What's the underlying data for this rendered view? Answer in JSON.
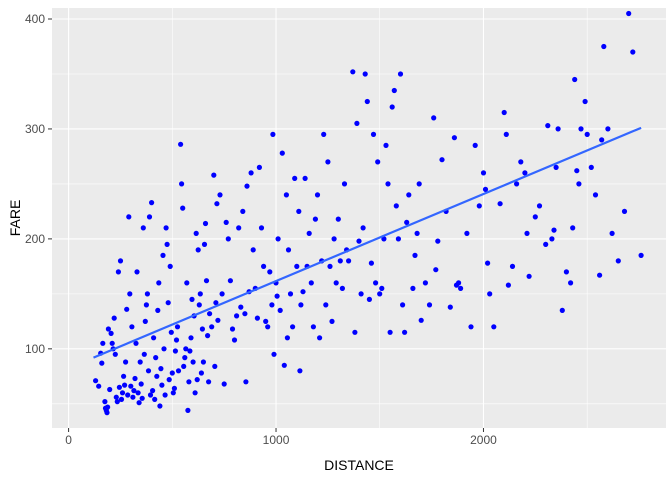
{
  "chart_data": {
    "type": "scatter",
    "xlabel": "DISTANCE",
    "ylabel": "FARE",
    "xlim": [
      -80,
      2880
    ],
    "ylim": [
      28,
      410
    ],
    "xticks": [
      0,
      1000,
      2000
    ],
    "yticks": [
      100,
      200,
      300,
      400
    ],
    "xtick_labels": [
      "0",
      "1000",
      "2000"
    ],
    "ytick_labels": [
      "100",
      "200",
      "300",
      "400"
    ],
    "grid": true,
    "colors": {
      "panel": "#ebebeb",
      "grid_major": "#ffffff",
      "point": "#0000ff",
      "trend": "#3366ff"
    },
    "trend_line": {
      "x": [
        120,
        2760
      ],
      "y": [
        92,
        301
      ]
    },
    "series": [
      {
        "points": [
          [
            130,
            71
          ],
          [
            145,
            66
          ],
          [
            155,
            96
          ],
          [
            160,
            87
          ],
          [
            165,
            105
          ],
          [
            175,
            52
          ],
          [
            178,
            46
          ],
          [
            182,
            44
          ],
          [
            185,
            42
          ],
          [
            188,
            47
          ],
          [
            192,
            118
          ],
          [
            198,
            63
          ],
          [
            205,
            114
          ],
          [
            210,
            105
          ],
          [
            215,
            100
          ],
          [
            220,
            128
          ],
          [
            225,
            95
          ],
          [
            230,
            56
          ],
          [
            235,
            52
          ],
          [
            240,
            170
          ],
          [
            245,
            65
          ],
          [
            250,
            180
          ],
          [
            255,
            54
          ],
          [
            260,
            60
          ],
          [
            265,
            75
          ],
          [
            270,
            67
          ],
          [
            275,
            88
          ],
          [
            280,
            136
          ],
          [
            285,
            58
          ],
          [
            290,
            220
          ],
          [
            295,
            150
          ],
          [
            300,
            66
          ],
          [
            305,
            120
          ],
          [
            310,
            56
          ],
          [
            315,
            62
          ],
          [
            320,
            73
          ],
          [
            325,
            105
          ],
          [
            330,
            170
          ],
          [
            335,
            60
          ],
          [
            340,
            51
          ],
          [
            345,
            88
          ],
          [
            350,
            68
          ],
          [
            355,
            55
          ],
          [
            360,
            210
          ],
          [
            365,
            95
          ],
          [
            370,
            125
          ],
          [
            375,
            140
          ],
          [
            380,
            150
          ],
          [
            385,
            80
          ],
          [
            390,
            220
          ],
          [
            395,
            58
          ],
          [
            400,
            233
          ],
          [
            405,
            62
          ],
          [
            410,
            110
          ],
          [
            415,
            54
          ],
          [
            420,
            92
          ],
          [
            425,
            75
          ],
          [
            430,
            135
          ],
          [
            435,
            160
          ],
          [
            440,
            48
          ],
          [
            445,
            82
          ],
          [
            450,
            67
          ],
          [
            455,
            185
          ],
          [
            460,
            100
          ],
          [
            465,
            58
          ],
          [
            470,
            210
          ],
          [
            475,
            195
          ],
          [
            480,
            142
          ],
          [
            485,
            72
          ],
          [
            490,
            175
          ],
          [
            495,
            115
          ],
          [
            500,
            78
          ],
          [
            505,
            60
          ],
          [
            510,
            64
          ],
          [
            515,
            98
          ],
          [
            520,
            108
          ],
          [
            525,
            120
          ],
          [
            530,
            80
          ],
          [
            540,
            286
          ],
          [
            545,
            250
          ],
          [
            550,
            228
          ],
          [
            555,
            84
          ],
          [
            560,
            92
          ],
          [
            565,
            100
          ],
          [
            570,
            160
          ],
          [
            575,
            44
          ],
          [
            580,
            70
          ],
          [
            585,
            98
          ],
          [
            590,
            110
          ],
          [
            595,
            145
          ],
          [
            600,
            88
          ],
          [
            605,
            130
          ],
          [
            610,
            60
          ],
          [
            615,
            205
          ],
          [
            620,
            72
          ],
          [
            625,
            190
          ],
          [
            630,
            140
          ],
          [
            635,
            150
          ],
          [
            640,
            78
          ],
          [
            645,
            118
          ],
          [
            650,
            88
          ],
          [
            655,
            195
          ],
          [
            660,
            214
          ],
          [
            665,
            162
          ],
          [
            670,
            112
          ],
          [
            675,
            70
          ],
          [
            680,
            132
          ],
          [
            690,
            120
          ],
          [
            700,
            258
          ],
          [
            705,
            84
          ],
          [
            710,
            142
          ],
          [
            715,
            232
          ],
          [
            720,
            126
          ],
          [
            730,
            240
          ],
          [
            740,
            150
          ],
          [
            750,
            68
          ],
          [
            760,
            215
          ],
          [
            770,
            200
          ],
          [
            780,
            162
          ],
          [
            790,
            118
          ],
          [
            800,
            108
          ],
          [
            810,
            130
          ],
          [
            820,
            210
          ],
          [
            830,
            138
          ],
          [
            840,
            225
          ],
          [
            850,
            132
          ],
          [
            855,
            70
          ],
          [
            860,
            248
          ],
          [
            870,
            152
          ],
          [
            880,
            260
          ],
          [
            890,
            190
          ],
          [
            900,
            155
          ],
          [
            910,
            128
          ],
          [
            920,
            265
          ],
          [
            930,
            210
          ],
          [
            940,
            175
          ],
          [
            950,
            125
          ],
          [
            960,
            120
          ],
          [
            970,
            170
          ],
          [
            980,
            140
          ],
          [
            985,
            295
          ],
          [
            990,
            95
          ],
          [
            1000,
            160
          ],
          [
            1005,
            148
          ],
          [
            1010,
            200
          ],
          [
            1020,
            135
          ],
          [
            1030,
            278
          ],
          [
            1040,
            85
          ],
          [
            1050,
            240
          ],
          [
            1055,
            110
          ],
          [
            1060,
            190
          ],
          [
            1070,
            150
          ],
          [
            1080,
            120
          ],
          [
            1090,
            255
          ],
          [
            1100,
            175
          ],
          [
            1110,
            225
          ],
          [
            1115,
            80
          ],
          [
            1120,
            140
          ],
          [
            1130,
            152
          ],
          [
            1140,
            255
          ],
          [
            1150,
            175
          ],
          [
            1160,
            205
          ],
          [
            1170,
            160
          ],
          [
            1180,
            120
          ],
          [
            1190,
            218
          ],
          [
            1200,
            240
          ],
          [
            1210,
            110
          ],
          [
            1220,
            180
          ],
          [
            1230,
            295
          ],
          [
            1240,
            140
          ],
          [
            1250,
            270
          ],
          [
            1260,
            175
          ],
          [
            1270,
            125
          ],
          [
            1280,
            200
          ],
          [
            1290,
            160
          ],
          [
            1300,
            218
          ],
          [
            1310,
            180
          ],
          [
            1320,
            155
          ],
          [
            1330,
            250
          ],
          [
            1340,
            190
          ],
          [
            1350,
            180
          ],
          [
            1370,
            352
          ],
          [
            1380,
            115
          ],
          [
            1390,
            305
          ],
          [
            1400,
            198
          ],
          [
            1410,
            150
          ],
          [
            1420,
            210
          ],
          [
            1430,
            350
          ],
          [
            1440,
            325
          ],
          [
            1450,
            145
          ],
          [
            1460,
            178
          ],
          [
            1470,
            295
          ],
          [
            1480,
            160
          ],
          [
            1490,
            270
          ],
          [
            1500,
            150
          ],
          [
            1510,
            155
          ],
          [
            1520,
            200
          ],
          [
            1530,
            285
          ],
          [
            1540,
            250
          ],
          [
            1550,
            115
          ],
          [
            1560,
            320
          ],
          [
            1570,
            335
          ],
          [
            1580,
            230
          ],
          [
            1590,
            200
          ],
          [
            1600,
            350
          ],
          [
            1610,
            140
          ],
          [
            1620,
            115
          ],
          [
            1630,
            215
          ],
          [
            1640,
            240
          ],
          [
            1660,
            155
          ],
          [
            1670,
            185
          ],
          [
            1680,
            205
          ],
          [
            1690,
            250
          ],
          [
            1700,
            126
          ],
          [
            1720,
            160
          ],
          [
            1740,
            140
          ],
          [
            1760,
            310
          ],
          [
            1770,
            172
          ],
          [
            1780,
            198
          ],
          [
            1800,
            272
          ],
          [
            1820,
            225
          ],
          [
            1840,
            138
          ],
          [
            1860,
            292
          ],
          [
            1870,
            158
          ],
          [
            1880,
            160
          ],
          [
            1890,
            155
          ],
          [
            1920,
            205
          ],
          [
            1940,
            120
          ],
          [
            1960,
            285
          ],
          [
            1980,
            230
          ],
          [
            2000,
            260
          ],
          [
            2010,
            245
          ],
          [
            2020,
            178
          ],
          [
            2030,
            150
          ],
          [
            2050,
            120
          ],
          [
            2080,
            232
          ],
          [
            2100,
            315
          ],
          [
            2110,
            295
          ],
          [
            2120,
            158
          ],
          [
            2140,
            175
          ],
          [
            2160,
            250
          ],
          [
            2180,
            270
          ],
          [
            2200,
            260
          ],
          [
            2210,
            205
          ],
          [
            2220,
            166
          ],
          [
            2250,
            220
          ],
          [
            2270,
            230
          ],
          [
            2300,
            195
          ],
          [
            2310,
            303
          ],
          [
            2330,
            200
          ],
          [
            2340,
            208
          ],
          [
            2350,
            265
          ],
          [
            2360,
            300
          ],
          [
            2380,
            135
          ],
          [
            2400,
            170
          ],
          [
            2420,
            160
          ],
          [
            2430,
            210
          ],
          [
            2440,
            345
          ],
          [
            2450,
            262
          ],
          [
            2460,
            250
          ],
          [
            2470,
            300
          ],
          [
            2490,
            325
          ],
          [
            2500,
            295
          ],
          [
            2520,
            265
          ],
          [
            2540,
            240
          ],
          [
            2560,
            167
          ],
          [
            2570,
            290
          ],
          [
            2580,
            375
          ],
          [
            2600,
            300
          ],
          [
            2620,
            205
          ],
          [
            2650,
            180
          ],
          [
            2680,
            225
          ],
          [
            2700,
            405
          ],
          [
            2720,
            370
          ],
          [
            2760,
            185
          ]
        ]
      }
    ]
  }
}
